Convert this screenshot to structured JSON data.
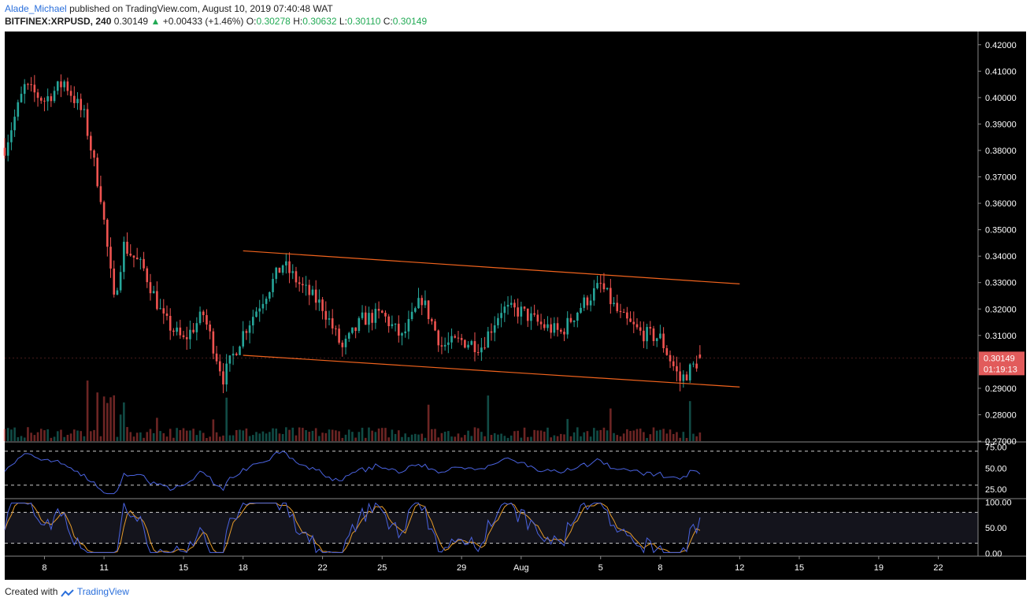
{
  "header": {
    "author": "Alade_Michael",
    "published_text": "published on TradingView.com, August 10, 2019 07:40:48 WAT",
    "symbol": "BITFINEX:XRPUSD, 240",
    "last": "0.30149",
    "change": "+0.00433 (+1.46%)",
    "o_label": "O:",
    "o_value": "0.30278",
    "h_label": "H:",
    "h_value": "0.30632",
    "l_label": "L:",
    "l_value": "0.30110",
    "c_label": "C:",
    "c_value": "0.30149"
  },
  "footer": {
    "created_with": "Created with",
    "brand": "TradingView"
  },
  "colors": {
    "background": "#000000",
    "up": "#26a69a",
    "down": "#ef5350",
    "channel": "#f0631d",
    "rsi_line": "#4a63e0",
    "stoch_k": "#4a63e0",
    "stoch_d": "#e59b2a",
    "price_tag": "#e25b5b"
  },
  "chart_data": {
    "type": "candlestick",
    "price_axis": {
      "ylim": [
        0.27,
        0.425
      ],
      "ticks": [
        "0.42000",
        "0.41000",
        "0.40000",
        "0.39000",
        "0.38000",
        "0.37000",
        "0.36000",
        "0.35000",
        "0.34000",
        "0.33000",
        "0.32000",
        "0.31000",
        "0.29000",
        "0.28000",
        "0.27000"
      ]
    },
    "x_ticks": [
      "8",
      "11",
      "15",
      "18",
      "22",
      "25",
      "29",
      "Aug",
      "5",
      "8",
      "12",
      "15",
      "19",
      "22"
    ],
    "last_price": {
      "value": 0.30149,
      "label": "0.30149",
      "countdown": "01:19:13"
    },
    "channel": {
      "upper": [
        {
          "x": "Jul 18",
          "y": 0.342
        },
        {
          "x": "Aug 12",
          "y": 0.3295
        }
      ],
      "lower": [
        {
          "x": "Jul 18",
          "y": 0.3025
        },
        {
          "x": "Aug 12",
          "y": 0.2905
        }
      ]
    },
    "ohlc_keyframes": [
      {
        "x": "Jul 6",
        "y": 0.381
      },
      {
        "x": "Jul 7",
        "y": 0.404
      },
      {
        "x": "Jul 8",
        "y": 0.399
      },
      {
        "x": "Jul 9",
        "y": 0.406
      },
      {
        "x": "Jul 10",
        "y": 0.393
      },
      {
        "x": "Jul 10 20:00",
        "y": 0.363
      },
      {
        "x": "Jul 11",
        "y": 0.353
      },
      {
        "x": "Jul 11 12:00",
        "y": 0.323
      },
      {
        "x": "Jul 12",
        "y": 0.344
      },
      {
        "x": "Jul 13",
        "y": 0.335
      },
      {
        "x": "Jul 14",
        "y": 0.316
      },
      {
        "x": "Jul 15",
        "y": 0.308
      },
      {
        "x": "Jul 16",
        "y": 0.318
      },
      {
        "x": "Jul 17",
        "y": 0.294
      },
      {
        "x": "Jul 18",
        "y": 0.311
      },
      {
        "x": "Jul 19",
        "y": 0.324
      },
      {
        "x": "Jul 20",
        "y": 0.337
      },
      {
        "x": "Jul 21",
        "y": 0.328
      },
      {
        "x": "Jul 22",
        "y": 0.321
      },
      {
        "x": "Jul 23",
        "y": 0.305
      },
      {
        "x": "Jul 24",
        "y": 0.316
      },
      {
        "x": "Jul 25",
        "y": 0.318
      },
      {
        "x": "Jul 26",
        "y": 0.309
      },
      {
        "x": "Jul 27",
        "y": 0.324
      },
      {
        "x": "Jul 28",
        "y": 0.306
      },
      {
        "x": "Jul 29",
        "y": 0.308
      },
      {
        "x": "Jul 30",
        "y": 0.306
      },
      {
        "x": "Jul 31",
        "y": 0.32
      },
      {
        "x": "Aug 1",
        "y": 0.319
      },
      {
        "x": "Aug 2",
        "y": 0.314
      },
      {
        "x": "Aug 3",
        "y": 0.311
      },
      {
        "x": "Aug 4",
        "y": 0.321
      },
      {
        "x": "Aug 5",
        "y": 0.329
      },
      {
        "x": "Aug 6",
        "y": 0.317
      },
      {
        "x": "Aug 7",
        "y": 0.311
      },
      {
        "x": "Aug 8",
        "y": 0.309
      },
      {
        "x": "Aug 9",
        "y": 0.293
      },
      {
        "x": "Aug 10",
        "y": 0.301
      }
    ],
    "volume": {
      "shown": true,
      "note": "bars colored by candle direction"
    },
    "rsi": {
      "levels": [
        {
          "value": 75,
          "label": "75.00"
        },
        {
          "value": 50,
          "label": "50.00"
        },
        {
          "value": 25,
          "label": "25.00"
        }
      ],
      "ylim": [
        15,
        80
      ],
      "dashed_levels": [
        70,
        30
      ],
      "last_value": 43
    },
    "stochastic": {
      "levels": [
        {
          "value": 100,
          "label": "100.00"
        },
        {
          "value": 50,
          "label": "50.00"
        },
        {
          "value": 0,
          "label": "0.00"
        }
      ],
      "ylim": [
        -5,
        105
      ],
      "dashed_levels": [
        80,
        20
      ],
      "last_k": 70,
      "last_d": 45
    }
  }
}
